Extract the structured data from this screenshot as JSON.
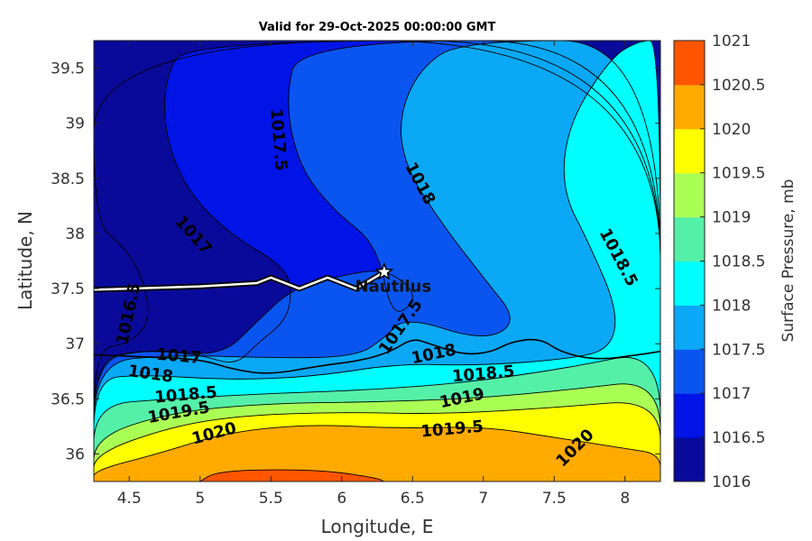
{
  "title": "Valid for 29-Oct-2025 00:00:00 GMT",
  "xlabel": "Longitude, E",
  "ylabel": "Latitude, N",
  "colorbar": {
    "label": "Surface Pressure, mb",
    "ticks": [
      "1016",
      "1016.5",
      "1017",
      "1017.5",
      "1018",
      "1018.5",
      "1019",
      "1019.5",
      "1020",
      "1020.5",
      "1021"
    ]
  },
  "station": {
    "name": "Nautilus",
    "lon": 6.3,
    "lat": 37.65
  },
  "colors": {
    "1016": "#0a0a9a",
    "1016.5": "#0014e6",
    "1017": "#0a55f0",
    "1017.5": "#0aa8f5",
    "1018": "#00ffff",
    "1018.5": "#55f0a8",
    "1019": "#aaff55",
    "1019.5": "#ffff00",
    "1020": "#ffaa00",
    "1020.5": "#ff5500",
    "1021": "#ff0000"
  },
  "chart_data": {
    "type": "contour-map",
    "variable": "Surface Pressure",
    "units": "mb",
    "xlim": [
      4.25,
      8.25
    ],
    "ylim": [
      35.75,
      39.75
    ],
    "xticks": [
      4.5,
      5,
      5.5,
      6,
      6.5,
      7,
      7.5,
      8
    ],
    "xtick_labels": [
      "4.5",
      "5",
      "5.5",
      "6",
      "6.5",
      "7",
      "7.5",
      "8"
    ],
    "yticks": [
      36,
      36.5,
      37,
      37.5,
      38,
      38.5,
      39,
      39.5
    ],
    "ytick_labels": [
      "36",
      "36.5",
      "37",
      "37.5",
      "38",
      "38.5",
      "39",
      "39.5"
    ],
    "color_levels": [
      1016,
      1016.5,
      1017,
      1017.5,
      1018,
      1018.5,
      1019,
      1019.5,
      1020,
      1020.5,
      1021
    ],
    "contour_labels": [
      {
        "text": "1017.5",
        "lon": 5.55,
        "lat": 38.85,
        "angle": 85
      },
      {
        "text": "1018",
        "lon": 6.55,
        "lat": 38.45,
        "angle": 62
      },
      {
        "text": "1017",
        "lon": 4.95,
        "lat": 37.98,
        "angle": 48
      },
      {
        "text": "1018.5",
        "lon": 7.95,
        "lat": 37.78,
        "angle": 62
      },
      {
        "text": "1016.5",
        "lon": 4.5,
        "lat": 37.27,
        "angle": -78
      },
      {
        "text": "1017.5",
        "lon": 6.42,
        "lat": 37.15,
        "angle": -55
      },
      {
        "text": "1017",
        "lon": 4.85,
        "lat": 36.88,
        "angle": 5
      },
      {
        "text": "1018",
        "lon": 6.65,
        "lat": 36.9,
        "angle": -12
      },
      {
        "text": "1018",
        "lon": 4.65,
        "lat": 36.72,
        "angle": 8
      },
      {
        "text": "1018.5",
        "lon": 7.0,
        "lat": 36.72,
        "angle": -5
      },
      {
        "text": "1018.5",
        "lon": 4.9,
        "lat": 36.53,
        "angle": -5
      },
      {
        "text": "1019",
        "lon": 6.85,
        "lat": 36.5,
        "angle": -12
      },
      {
        "text": "1019.5",
        "lon": 4.85,
        "lat": 36.37,
        "angle": -10
      },
      {
        "text": "1019.5",
        "lon": 6.78,
        "lat": 36.22,
        "angle": -5
      },
      {
        "text": "1020",
        "lon": 5.1,
        "lat": 36.18,
        "angle": -15
      },
      {
        "text": "1020",
        "lon": 7.65,
        "lat": 36.05,
        "angle": -45
      }
    ],
    "track": [
      [
        4.25,
        37.49
      ],
      [
        4.5,
        37.5
      ],
      [
        5.0,
        37.52
      ],
      [
        5.4,
        37.55
      ],
      [
        5.5,
        37.6
      ],
      [
        5.7,
        37.5
      ],
      [
        5.9,
        37.6
      ],
      [
        6.1,
        37.5
      ],
      [
        6.3,
        37.65
      ]
    ],
    "bands": [
      {
        "level": 1020.5,
        "points": [
          [
            5.0,
            35.75
          ],
          [
            5.1,
            35.83
          ],
          [
            5.4,
            35.86
          ],
          [
            5.9,
            35.85
          ],
          [
            6.25,
            35.78
          ],
          [
            6.3,
            35.75
          ]
        ]
      },
      {
        "level": 1020,
        "points": [
          [
            4.25,
            35.75
          ],
          [
            4.25,
            35.85
          ],
          [
            4.7,
            36.0
          ],
          [
            5.2,
            36.2
          ],
          [
            5.8,
            36.27
          ],
          [
            6.4,
            36.23
          ],
          [
            7.0,
            36.25
          ],
          [
            7.5,
            36.15
          ],
          [
            8.0,
            36.05
          ],
          [
            8.25,
            36.0
          ],
          [
            8.25,
            35.75
          ]
        ]
      },
      {
        "level": 1019.5,
        "points": [
          [
            4.25,
            35.75
          ],
          [
            4.25,
            36.0
          ],
          [
            4.8,
            36.25
          ],
          [
            5.3,
            36.35
          ],
          [
            6.0,
            36.38
          ],
          [
            6.7,
            36.36
          ],
          [
            7.5,
            36.42
          ],
          [
            8.25,
            36.5
          ],
          [
            8.25,
            35.75
          ]
        ]
      },
      {
        "level": 1019,
        "points": [
          [
            4.25,
            35.75
          ],
          [
            4.25,
            36.15
          ],
          [
            4.8,
            36.38
          ],
          [
            5.5,
            36.46
          ],
          [
            6.2,
            36.47
          ],
          [
            6.9,
            36.5
          ],
          [
            7.6,
            36.58
          ],
          [
            8.25,
            36.68
          ],
          [
            8.25,
            35.75
          ]
        ]
      },
      {
        "level": 1018.5,
        "points": [
          [
            4.25,
            35.75
          ],
          [
            4.25,
            36.45
          ],
          [
            4.8,
            36.5
          ],
          [
            5.5,
            36.55
          ],
          [
            6.2,
            36.58
          ],
          [
            6.9,
            36.65
          ],
          [
            7.6,
            36.78
          ],
          [
            8.25,
            36.95
          ],
          [
            8.25,
            35.75
          ]
        ]
      },
      {
        "level": 1018,
        "points": [
          [
            4.25,
            35.75
          ],
          [
            4.25,
            36.68
          ],
          [
            4.6,
            36.72
          ],
          [
            5.2,
            36.67
          ],
          [
            5.8,
            36.7
          ],
          [
            6.4,
            36.82
          ],
          [
            6.95,
            36.8
          ],
          [
            7.6,
            36.86
          ],
          [
            7.9,
            36.95
          ],
          [
            7.95,
            37.3
          ],
          [
            7.75,
            37.9
          ],
          [
            7.55,
            38.4
          ],
          [
            7.6,
            39.0
          ],
          [
            7.9,
            39.6
          ],
          [
            8.1,
            39.75
          ],
          [
            8.25,
            39.75
          ],
          [
            8.25,
            35.75
          ]
        ]
      },
      {
        "level": 1017.5,
        "points": [
          [
            4.25,
            35.75
          ],
          [
            4.25,
            36.83
          ],
          [
            4.8,
            36.9
          ],
          [
            5.5,
            36.87
          ],
          [
            6.1,
            36.88
          ],
          [
            6.3,
            37.05
          ],
          [
            6.45,
            37.25
          ],
          [
            7.0,
            37.02
          ],
          [
            7.25,
            37.2
          ],
          [
            7.0,
            37.6
          ],
          [
            6.7,
            38.1
          ],
          [
            6.45,
            38.6
          ],
          [
            6.4,
            39.05
          ],
          [
            6.55,
            39.5
          ],
          [
            6.85,
            39.75
          ],
          [
            8.25,
            39.75
          ],
          [
            8.25,
            35.75
          ]
        ]
      },
      {
        "level": 1017,
        "points": [
          [
            4.25,
            35.75
          ],
          [
            4.25,
            36.85
          ],
          [
            4.6,
            36.95
          ],
          [
            5.15,
            36.88
          ],
          [
            5.4,
            37.2
          ],
          [
            5.65,
            37.5
          ],
          [
            6.0,
            37.62
          ],
          [
            6.3,
            37.68
          ],
          [
            6.5,
            37.5
          ],
          [
            6.5,
            37.35
          ],
          [
            6.35,
            37.25
          ],
          [
            6.25,
            37.9
          ],
          [
            5.95,
            38.2
          ],
          [
            5.7,
            38.6
          ],
          [
            5.6,
            39.2
          ],
          [
            5.7,
            39.75
          ],
          [
            8.25,
            39.75
          ],
          [
            8.25,
            35.75
          ]
        ]
      },
      {
        "level": 1016.5,
        "points": [
          [
            4.25,
            35.75
          ],
          [
            4.25,
            36.85
          ],
          [
            4.65,
            36.95
          ],
          [
            5.0,
            36.9
          ],
          [
            5.25,
            36.8
          ],
          [
            5.4,
            37.0
          ],
          [
            5.6,
            37.2
          ],
          [
            5.65,
            37.45
          ],
          [
            5.6,
            37.7
          ],
          [
            5.2,
            38.0
          ],
          [
            4.9,
            38.4
          ],
          [
            4.75,
            38.9
          ],
          [
            4.75,
            39.4
          ],
          [
            4.9,
            39.75
          ],
          [
            8.25,
            39.75
          ],
          [
            8.25,
            35.75
          ]
        ]
      },
      {
        "level": 1016,
        "points": [
          [
            4.25,
            35.75
          ],
          [
            4.25,
            36.95
          ],
          [
            4.5,
            37.0
          ],
          [
            4.65,
            37.2
          ],
          [
            4.6,
            37.6
          ],
          [
            4.45,
            37.9
          ],
          [
            4.25,
            38.1
          ],
          [
            4.25,
            39.75
          ],
          [
            8.25,
            39.75
          ],
          [
            8.25,
            35.75
          ]
        ]
      }
    ],
    "coastline": [
      [
        4.25,
        36.9
      ],
      [
        4.6,
        36.88
      ],
      [
        5.0,
        36.86
      ],
      [
        5.25,
        36.76
      ],
      [
        5.5,
        36.72
      ],
      [
        5.85,
        36.8
      ],
      [
        6.15,
        36.85
      ],
      [
        6.35,
        36.93
      ],
      [
        6.5,
        37.05
      ],
      [
        6.62,
        37.0
      ],
      [
        6.85,
        36.9
      ],
      [
        7.05,
        36.92
      ],
      [
        7.2,
        37.02
      ],
      [
        7.4,
        37.05
      ],
      [
        7.55,
        36.92
      ],
      [
        7.8,
        36.85
      ],
      [
        8.1,
        36.9
      ],
      [
        8.25,
        36.93
      ]
    ]
  }
}
